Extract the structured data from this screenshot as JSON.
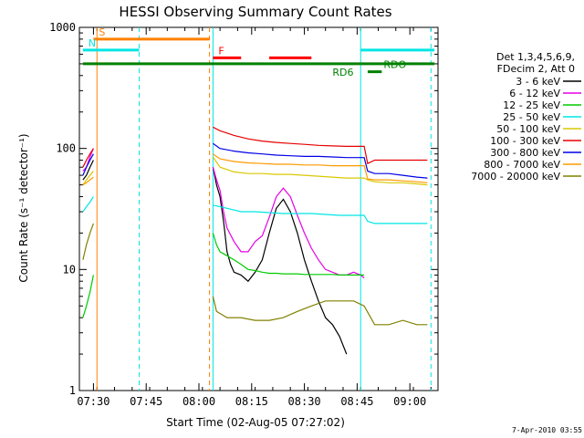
{
  "chart_data": {
    "type": "line",
    "title": "HESSI Observing Summary Count Rates",
    "xlabel": "Start Time (02-Aug-05 07:27:02)",
    "ylabel": "Count Rate (s⁻¹ detector⁻¹)",
    "yscale": "log",
    "ylim": [
      1,
      1000
    ],
    "xlim": [
      "07:26",
      "09:08"
    ],
    "x_ticks": [
      "07:30",
      "07:45",
      "08:00",
      "08:15",
      "08:30",
      "08:45",
      "09:00"
    ],
    "y_ticks": [
      "1",
      "10",
      "100",
      "1000"
    ],
    "legend_header": [
      "Det 1,3,4,5,6,9,",
      "FDecim 2, Att 0"
    ],
    "legend_placement": "right",
    "date_stamp": "7-Apr-2010 03:55",
    "series": [
      {
        "name": "3 - 6 keV",
        "color": "#000000",
        "x": [
          "07:27",
          "07:28",
          "07:29",
          "07:30",
          "08:04",
          "08:05",
          "08:06",
          "08:07",
          "08:08",
          "08:09",
          "08:10",
          "08:12",
          "08:14",
          "08:16",
          "08:18",
          "08:20",
          "08:22",
          "08:24",
          "08:26",
          "08:28",
          "08:30",
          "08:32",
          "08:34",
          "08:36",
          "08:38",
          "08:40",
          "08:42"
        ],
        "values": [
          55,
          60,
          70,
          80,
          70,
          50,
          40,
          25,
          14,
          11,
          9.5,
          9,
          8,
          9.5,
          12,
          20,
          32,
          38,
          30,
          20,
          12,
          8,
          5.5,
          4,
          3.5,
          2.8,
          2
        ]
      },
      {
        "name": "6 - 12 keV",
        "color": "#e600e6",
        "x": [
          "07:27",
          "07:28",
          "07:29",
          "07:30",
          "08:04",
          "08:05",
          "08:06",
          "08:07",
          "08:08",
          "08:10",
          "08:12",
          "08:14",
          "08:16",
          "08:18",
          "08:20",
          "08:22",
          "08:24",
          "08:26",
          "08:28",
          "08:30",
          "08:32",
          "08:34",
          "08:36",
          "08:38",
          "08:40",
          "08:42",
          "08:44",
          "08:46",
          "08:47"
        ],
        "values": [
          65,
          70,
          85,
          100,
          70,
          55,
          45,
          30,
          22,
          17,
          14,
          14,
          17,
          19,
          27,
          40,
          47,
          40,
          28,
          20,
          15,
          12,
          10,
          9.5,
          9,
          9,
          9.5,
          9,
          8.5
        ]
      },
      {
        "name": "12 - 25 keV",
        "color": "#00cc00",
        "x": [
          "07:27",
          "07:28",
          "07:29",
          "07:30",
          "08:04",
          "08:05",
          "08:06",
          "08:08",
          "08:10",
          "08:12",
          "08:14",
          "08:16",
          "08:18",
          "08:20",
          "08:22",
          "08:24",
          "08:26",
          "08:28",
          "08:30",
          "08:32",
          "08:34",
          "08:36",
          "08:38",
          "08:40",
          "08:42",
          "08:44",
          "08:46",
          "08:47"
        ],
        "values": [
          4,
          5,
          6.5,
          9,
          20,
          16,
          14,
          13,
          12,
          11,
          10,
          9.8,
          9.5,
          9.3,
          9.3,
          9.2,
          9.2,
          9.2,
          9.1,
          9.1,
          9.1,
          9.1,
          9.1,
          9,
          9,
          9,
          9,
          9
        ]
      },
      {
        "name": "25 - 50 keV",
        "color": "#00e5e5",
        "x": [
          "07:27",
          "07:28",
          "07:29",
          "07:30",
          "08:04",
          "08:06",
          "08:08",
          "08:10",
          "08:12",
          "08:16",
          "08:20",
          "08:24",
          "08:28",
          "08:32",
          "08:36",
          "08:40",
          "08:44",
          "08:47",
          "08:48",
          "08:50",
          "08:54",
          "08:58",
          "09:02",
          "09:05"
        ],
        "values": [
          30,
          33,
          36,
          40,
          34,
          33,
          32,
          31,
          30,
          30,
          29.5,
          29,
          29,
          29,
          28.5,
          28,
          28,
          28,
          25,
          24,
          24,
          24,
          24,
          24
        ]
      },
      {
        "name": "50 - 100 keV",
        "color": "#d9c800",
        "x": [
          "07:27",
          "07:28",
          "07:29",
          "07:30",
          "08:04",
          "08:06",
          "08:10",
          "08:14",
          "08:18",
          "08:22",
          "08:26",
          "08:30",
          "08:34",
          "08:38",
          "08:42",
          "08:47",
          "08:48",
          "08:50",
          "08:54",
          "08:58",
          "09:02",
          "09:05"
        ],
        "values": [
          50,
          55,
          60,
          65,
          85,
          70,
          64,
          62,
          62,
          61,
          61,
          60,
          59,
          58,
          57,
          57,
          55,
          53,
          52,
          52,
          51,
          50
        ]
      },
      {
        "name": "100 - 300 keV",
        "color": "#e60000",
        "x": [
          "07:27",
          "07:28",
          "07:29",
          "07:30",
          "08:04",
          "08:06",
          "08:10",
          "08:14",
          "08:18",
          "08:22",
          "08:26",
          "08:30",
          "08:34",
          "08:38",
          "08:42",
          "08:47",
          "08:48",
          "08:50",
          "08:54",
          "08:58",
          "09:02",
          "09:05"
        ],
        "values": [
          70,
          80,
          90,
          100,
          150,
          140,
          128,
          120,
          115,
          112,
          110,
          108,
          106,
          105,
          104,
          104,
          75,
          80,
          80,
          80,
          80,
          80
        ]
      },
      {
        "name": "300 - 800 keV",
        "color": "#0000e6",
        "x": [
          "07:27",
          "07:28",
          "07:29",
          "07:30",
          "08:04",
          "08:06",
          "08:10",
          "08:14",
          "08:18",
          "08:22",
          "08:26",
          "08:30",
          "08:34",
          "08:38",
          "08:42",
          "08:47",
          "08:48",
          "08:50",
          "08:54",
          "08:58",
          "09:02",
          "09:05"
        ],
        "values": [
          60,
          70,
          80,
          90,
          110,
          100,
          95,
          92,
          90,
          88,
          87,
          86,
          86,
          85,
          84,
          84,
          65,
          62,
          62,
          60,
          58,
          57
        ]
      },
      {
        "name": "800 - 7000 keV",
        "color": "#ff9a00",
        "x": [
          "07:27",
          "07:28",
          "07:29",
          "07:30",
          "08:04",
          "08:06",
          "08:10",
          "08:14",
          "08:18",
          "08:22",
          "08:26",
          "08:30",
          "08:34",
          "08:38",
          "08:42",
          "08:47",
          "08:48",
          "08:50",
          "08:54",
          "08:58",
          "09:02",
          "09:05"
        ],
        "values": [
          50,
          52,
          55,
          58,
          90,
          82,
          78,
          76,
          75,
          74,
          74,
          73,
          73,
          72,
          72,
          72,
          56,
          55,
          55,
          54,
          53,
          52
        ]
      },
      {
        "name": "7000 - 20000 keV",
        "color": "#808000",
        "x": [
          "07:27",
          "07:28",
          "07:29",
          "07:30",
          "08:04",
          "08:05",
          "08:08",
          "08:12",
          "08:16",
          "08:20",
          "08:24",
          "08:28",
          "08:32",
          "08:36",
          "08:40",
          "08:44",
          "08:47",
          "08:50",
          "08:54",
          "08:58",
          "09:02",
          "09:05"
        ],
        "values": [
          12,
          16,
          20,
          24,
          6,
          4.5,
          4,
          4,
          3.8,
          3.8,
          4,
          4.5,
          5,
          5.5,
          5.5,
          5.5,
          5,
          3.5,
          3.5,
          3.8,
          3.5,
          3.5
        ]
      }
    ],
    "annotations": [
      {
        "text": "S",
        "color": "#ff8000",
        "time_range": [
          "07:30",
          "08:03"
        ],
        "level": 800
      },
      {
        "text": "N",
        "color": "#00e5e5",
        "time_range": [
          "07:27",
          "07:43"
        ],
        "level": 650
      },
      {
        "text": "F",
        "color": "#ff0000",
        "time_range": [
          "08:04",
          "08:12"
        ],
        "level": 560
      },
      {
        "text": "",
        "color": "#ff0000",
        "time_range": [
          "08:20",
          "08:32"
        ],
        "level": 560
      },
      {
        "text": "",
        "color": "#00e5e5",
        "time_range": [
          "08:46",
          "09:07"
        ],
        "level": 650
      },
      {
        "text": "RD6",
        "color": "#008000",
        "time_range": [
          "07:27",
          "09:07"
        ],
        "level": 500
      },
      {
        "text": "RDO",
        "color": "#008000",
        "time_range": [
          "08:48",
          "08:52"
        ],
        "level": 430
      }
    ],
    "vertical_markers": [
      {
        "time": "07:31",
        "color": "#ff8000",
        "style": "solid"
      },
      {
        "time": "07:43",
        "color": "#00e5e5",
        "style": "dashed"
      },
      {
        "time": "08:03",
        "color": "#ff8000",
        "style": "dashed"
      },
      {
        "time": "08:04",
        "color": "#00e5e5",
        "style": "solid"
      },
      {
        "time": "08:46",
        "color": "#00e5e5",
        "style": "solid"
      },
      {
        "time": "09:06",
        "color": "#00e5e5",
        "style": "dashed"
      }
    ]
  }
}
